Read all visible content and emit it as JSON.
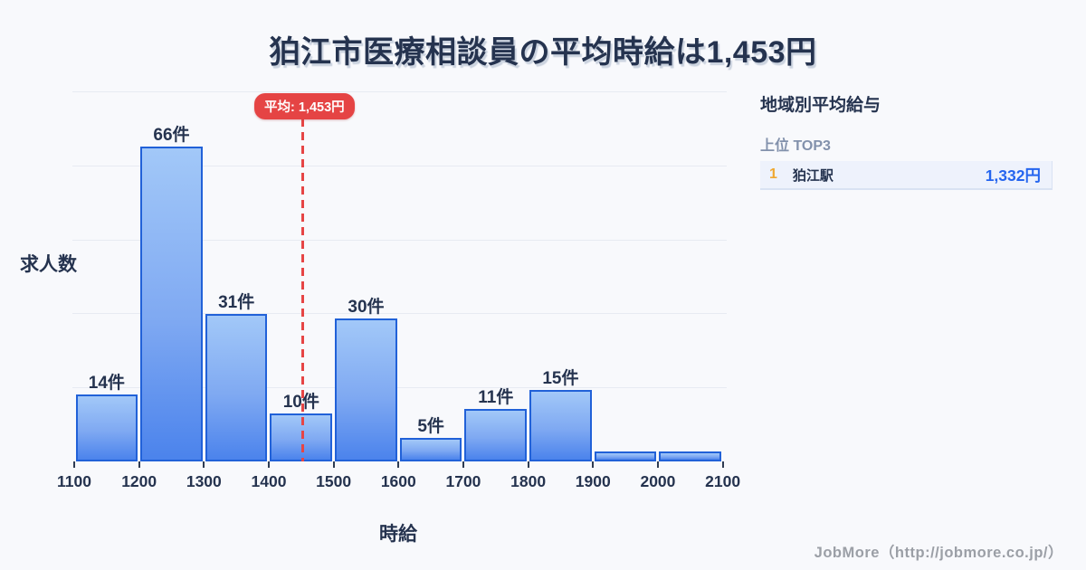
{
  "title": "狛江市医療相談員の平均時給は1,453円",
  "chart_data": {
    "type": "bar",
    "title": "狛江市医療相談員の平均時給は1,453円",
    "xlabel": "時給",
    "ylabel": "求人数",
    "bin_edges": [
      1100,
      1200,
      1300,
      1400,
      1500,
      1600,
      1700,
      1800,
      1900,
      2000,
      2100
    ],
    "values": [
      14,
      66,
      31,
      10,
      30,
      5,
      11,
      15,
      2,
      2
    ],
    "bar_labels": [
      "14件",
      "66件",
      "31件",
      "10件",
      "30件",
      "5件",
      "11件",
      "15件",
      "",
      ""
    ],
    "x_tick_labels": [
      "1100",
      "1200",
      "1300",
      "1400",
      "1500",
      "1600",
      "1700",
      "1800",
      "1900",
      "2000",
      "2100"
    ],
    "xlim": [
      1100,
      2100
    ],
    "grid": "horizontal",
    "legend_position": "none",
    "average_line": {
      "value": 1453,
      "label": "平均: 1,453円"
    }
  },
  "sidebar": {
    "title": "地域別平均給与",
    "subtitle": "上位 TOP3",
    "rows": [
      {
        "rank": "1",
        "name": "狛江駅",
        "value": "1,332円"
      }
    ]
  },
  "footer": {
    "credit": "JobMore（http://jobmore.co.jp/）"
  },
  "colors": {
    "background": "#f8f9fc",
    "text_dark": "#25334f",
    "bar_border": "#2161d8",
    "bar_top": "#a2c8f8",
    "bar_bottom": "#4b83ec",
    "gridline": "#e7ebf2",
    "average_red": "#e54444",
    "rank_amber": "#f0a832",
    "value_blue": "#2565ef",
    "subtitle_gray": "#8291ac",
    "row_background": "#eef2fc",
    "credit_gray": "#9b9fa6"
  }
}
